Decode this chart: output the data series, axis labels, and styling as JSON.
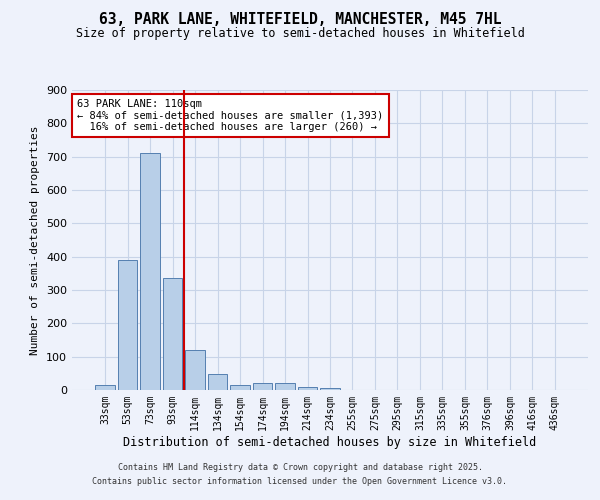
{
  "title_line1": "63, PARK LANE, WHITEFIELD, MANCHESTER, M45 7HL",
  "title_line2": "Size of property relative to semi-detached houses in Whitefield",
  "xlabel": "Distribution of semi-detached houses by size in Whitefield",
  "ylabel": "Number of semi-detached properties",
  "categories": [
    "33sqm",
    "53sqm",
    "73sqm",
    "93sqm",
    "114sqm",
    "134sqm",
    "154sqm",
    "174sqm",
    "194sqm",
    "214sqm",
    "234sqm",
    "255sqm",
    "275sqm",
    "295sqm",
    "315sqm",
    "335sqm",
    "355sqm",
    "376sqm",
    "396sqm",
    "416sqm",
    "436sqm"
  ],
  "values": [
    15,
    390,
    710,
    335,
    120,
    47,
    15,
    22,
    22,
    8,
    5,
    0,
    0,
    0,
    0,
    0,
    0,
    0,
    0,
    0,
    0
  ],
  "bar_color": "#b8cfe8",
  "bar_edge_color": "#5580b0",
  "property_line_color": "#cc0000",
  "annotation_text": "63 PARK LANE: 110sqm\n← 84% of semi-detached houses are smaller (1,393)\n  16% of semi-detached houses are larger (260) →",
  "annotation_box_color": "#ffffff",
  "annotation_box_edge_color": "#cc0000",
  "background_color": "#eef2fb",
  "grid_color": "#c8d4e8",
  "ylim": [
    0,
    900
  ],
  "yticks": [
    0,
    100,
    200,
    300,
    400,
    500,
    600,
    700,
    800,
    900
  ],
  "footer_line1": "Contains HM Land Registry data © Crown copyright and database right 2025.",
  "footer_line2": "Contains public sector information licensed under the Open Government Licence v3.0."
}
